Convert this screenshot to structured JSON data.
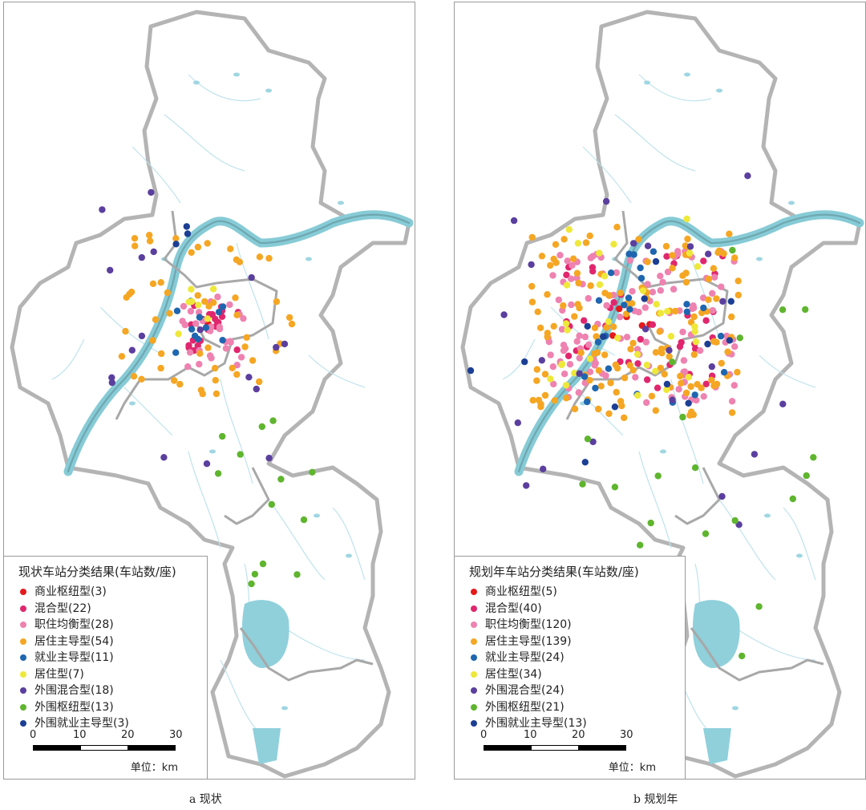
{
  "figure": {
    "panels": [
      {
        "id": "a",
        "caption": "a 现状",
        "legend": {
          "title": "现状车站分类结果(车站数/座)",
          "items": [
            {
              "label": "商业枢纽型(3)",
              "color": "#e41a1c"
            },
            {
              "label": "混合型(22)",
              "color": "#e0276e"
            },
            {
              "label": "职住均衡型(28)",
              "color": "#ee82b0"
            },
            {
              "label": "居住主导型(54)",
              "color": "#f5a623"
            },
            {
              "label": "就业主导型(11)",
              "color": "#1f66b0"
            },
            {
              "label": "居住型(7)",
              "color": "#eee83a"
            },
            {
              "label": "外围混合型(18)",
              "color": "#5b3f9e"
            },
            {
              "label": "外围枢纽型(13)",
              "color": "#5fb52e"
            },
            {
              "label": "外围就业主导型(3)",
              "color": "#1c3f94"
            }
          ]
        },
        "scale": {
          "ticks": [
            "0",
            "10",
            "20",
            "30"
          ],
          "unit": "单位：km"
        }
      },
      {
        "id": "b",
        "caption": "b 规划年",
        "legend": {
          "title": "规划年车站分类结果(车站数/座)",
          "items": [
            {
              "label": "商业枢纽型(5)",
              "color": "#e41a1c"
            },
            {
              "label": "混合型(40)",
              "color": "#e0276e"
            },
            {
              "label": "职住均衡型(120)",
              "color": "#ee82b0"
            },
            {
              "label": "居住主导型(139)",
              "color": "#f5a623"
            },
            {
              "label": "就业主导型(24)",
              "color": "#1f66b0"
            },
            {
              "label": "居住型(34)",
              "color": "#eee83a"
            },
            {
              "label": "外围混合型(24)",
              "color": "#5b3f9e"
            },
            {
              "label": "外围枢纽型(21)",
              "color": "#5fb52e"
            },
            {
              "label": "外围就业主导型(13)",
              "color": "#1c3f94"
            }
          ]
        },
        "scale": {
          "ticks": [
            "0",
            "10",
            "20",
            "30"
          ],
          "unit": "单位：km"
        }
      }
    ]
  }
}
